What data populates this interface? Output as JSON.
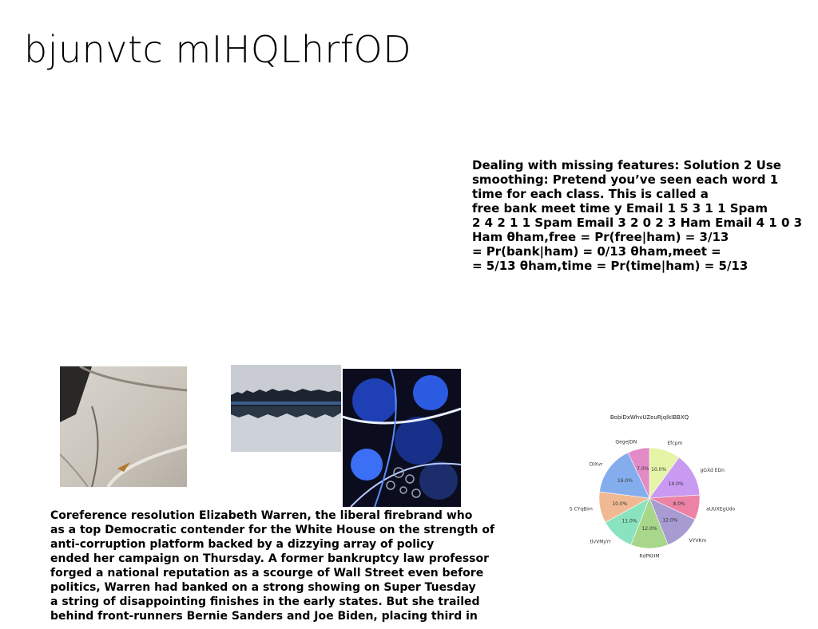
{
  "slide": {
    "title": "bjunvtc mIHQLhrfOD",
    "notes": "Dealing with missing features: Solution 2 Use\nsmoothing: Pretend you’ve seen each word 1\ntime for each class. This is called a\nfree bank meet time y Email 1 5 3 1 1 Spam\n2 4 2 1 1 Spam Email 3 2 0 2 3 Ham Email 4 1 0 3\nHam θham,free = Pr(free|ham) = 3/13\n= Pr(bank|ham) = 0/13 θham,meet =\n= 5/13 θham,time = Pr(time|ham) = 5/13",
    "article": "Coreference resolution Elizabeth Warren, the liberal firebrand who\nas a top Democratic contender for the White House on the strength of\nanti-corruption platform backed by a dizzying array of policy\nended her campaign on Thursday. A former bankruptcy law professor\nforged a national reputation as a scourge of Wall Street even before\npolitics, Warren had banked on a strong showing on Super Tuesday\na string of disappointing finishes in the early states. But she trailed\nbehind front-runners Bernie Sanders and Joe Biden, placing third in"
  },
  "chart_data": {
    "type": "pie",
    "title": "BobiDxWhvUZeuRjqlkIBBXQ",
    "categories": [
      "Efcpm",
      "gGXd EDn",
      "aUUXEgUdo",
      "VYVKm",
      "RdPKHM",
      "tlvVMyYr",
      "S CYqBim",
      "DIXvr",
      "QegeJDN"
    ],
    "values": [
      10.0,
      14.0,
      8.0,
      12.0,
      12.0,
      11.0,
      10.0,
      16.0,
      7.0
    ],
    "value_labels": [
      "10.0%",
      "14.0%",
      "8.0%",
      "12.0%",
      "12.0%",
      "11.0%",
      "10.0%",
      "16.0%",
      "7.0%"
    ],
    "colors": [
      "#e5f5a8",
      "#c89af2",
      "#ec83a5",
      "#a79bd2",
      "#a8d68a",
      "#89e3bf",
      "#f0b994",
      "#84adee",
      "#e28bc6"
    ],
    "start_angle_deg": 90,
    "direction": "clockwise"
  }
}
